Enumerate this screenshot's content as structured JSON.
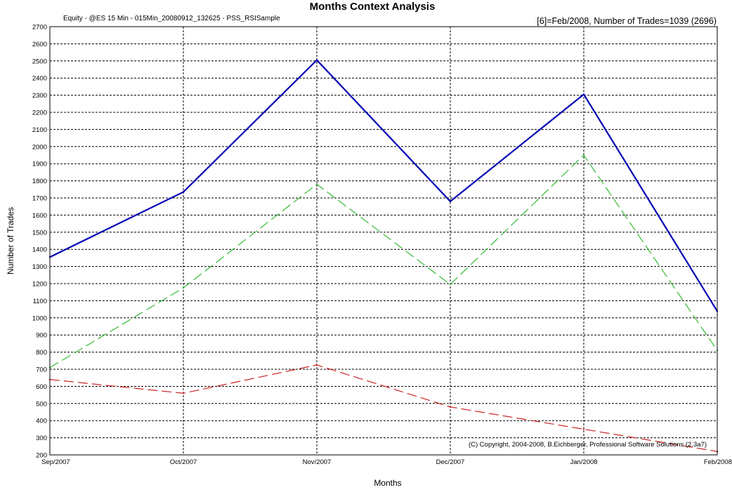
{
  "chart_data": {
    "type": "line",
    "title": "Months Context Analysis",
    "subtitle": "Equity - @ES 15 Min - 015Min_20080912_132625 - PSS_RSISample",
    "info": "[6]=Feb/2008,   Number of Trades=1039 (2696)",
    "copyright": "(C) Copyright, 2004-2008, B.Eichberger, Professional Software Solutions (2.3a7)",
    "xlabel": "Months",
    "ylabel": "Number of Trades",
    "ylim": [
      200,
      2700
    ],
    "ytick_step": 100,
    "grid": true,
    "categories": [
      "Sep/2007",
      "Oct/2007",
      "Nov/2007",
      "Dec/2007",
      "Jan/2008",
      "Feb/2008"
    ],
    "series": [
      {
        "values": [
          1355,
          1735,
          2505,
          1680,
          2305,
          1039
        ],
        "color": "#0000b4",
        "style": "solid"
      },
      {
        "values": [
          710,
          1175,
          1780,
          1195,
          1950,
          810
        ],
        "color": "#33bb33",
        "style": "dashed"
      },
      {
        "values": [
          640,
          560,
          725,
          480,
          350,
          220
        ],
        "color": "#cc2222",
        "style": "dashed"
      }
    ]
  }
}
